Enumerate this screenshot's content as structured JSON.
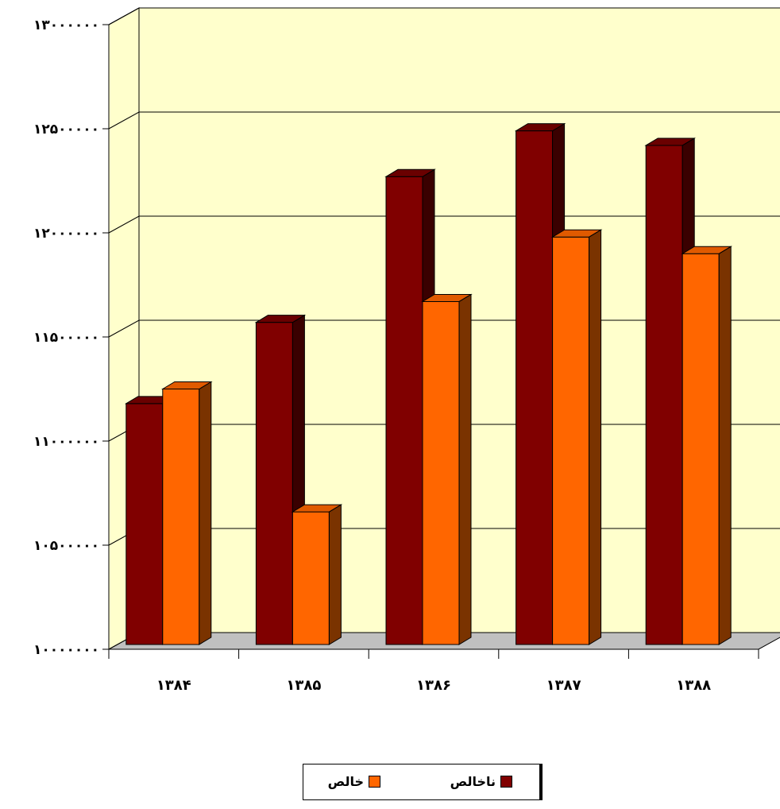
{
  "chart_data": {
    "type": "bar",
    "style": "3d-clustered",
    "categories": [
      "۱۳۸۴",
      "۱۳۸۵",
      "۱۳۸۶",
      "۱۳۸۷",
      "۱۳۸۸"
    ],
    "series": [
      {
        "name": "ناخالص",
        "values": [
          11180000,
          11570000,
          12270000,
          12490000,
          12420000
        ],
        "color": "#800000"
      },
      {
        "name": "خالص",
        "values": [
          11250000,
          10660000,
          11670000,
          11980000,
          11900000
        ],
        "color": "#ff6600"
      }
    ],
    "ylim": [
      10000000,
      13000000
    ],
    "y_ticks": [
      10000000,
      10500000,
      11000000,
      11500000,
      12000000,
      12500000,
      13000000
    ],
    "y_tick_labels": [
      "۱۰۰۰۰۰۰۰",
      "۱۰۵۰۰۰۰۰",
      "۱۱۰۰۰۰۰۰",
      "۱۱۵۰۰۰۰۰",
      "۱۲۰۰۰۰۰۰",
      "۱۲۵۰۰۰۰۰",
      "۱۳۰۰۰۰۰۰"
    ],
    "grid": true,
    "plot_background": "#ffffcc",
    "legend_position": "bottom",
    "title": "",
    "xlabel": "",
    "ylabel": ""
  }
}
